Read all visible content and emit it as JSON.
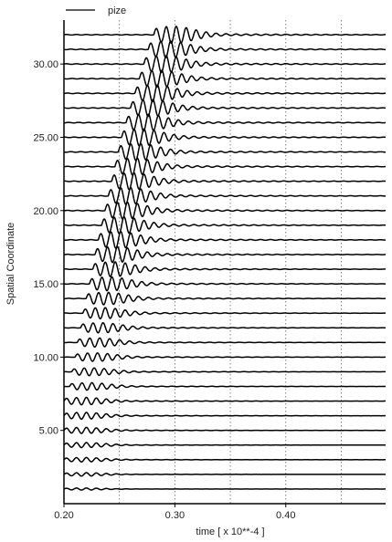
{
  "chart_data": {
    "type": "line",
    "title": "",
    "xlabel": "time [ x 10**-4 ]",
    "ylabel": "Spatial Coordinate",
    "xlim": [
      0.2,
      0.49
    ],
    "ylim": [
      0,
      33
    ],
    "x_ticks": [
      {
        "value": 0.2,
        "label": "0.20"
      },
      {
        "value": 0.3,
        "label": "0.30"
      },
      {
        "value": 0.4,
        "label": "0.40"
      }
    ],
    "y_ticks": [
      {
        "value": 5,
        "label": "5.00"
      },
      {
        "value": 10,
        "label": "10.00"
      },
      {
        "value": 15,
        "label": "15.00"
      },
      {
        "value": 20,
        "label": "20.00"
      },
      {
        "value": 25,
        "label": "25.00"
      },
      {
        "value": 30,
        "label": "30.00"
      }
    ],
    "vertical_grid": [
      0.25,
      0.3,
      0.35,
      0.4,
      0.45
    ],
    "grid_style": "dotted vertical",
    "legend": {
      "position": "top-left",
      "entries": [
        "pize"
      ]
    },
    "series": [
      {
        "name": "pize",
        "traces": {
          "offsets": [
            1,
            2,
            3,
            4,
            5,
            6,
            7,
            8,
            9,
            10,
            11,
            12,
            13,
            14,
            15,
            16,
            17,
            18,
            19,
            20,
            21,
            22,
            23,
            24,
            25,
            26,
            27,
            28,
            29,
            30,
            31,
            32
          ],
          "wavefront_arrival_time": [
            0.2,
            0.2,
            0.2,
            0.2,
            0.2,
            0.2,
            0.2,
            0.205,
            0.207,
            0.21,
            0.212,
            0.215,
            0.217,
            0.22,
            0.223,
            0.226,
            0.228,
            0.231,
            0.234,
            0.237,
            0.24,
            0.243,
            0.246,
            0.249,
            0.252,
            0.256,
            0.26,
            0.264,
            0.268,
            0.272,
            0.276,
            0.281
          ],
          "peak_amplitude": [
            0.06,
            0.1,
            0.13,
            0.15,
            0.18,
            0.2,
            0.22,
            0.22,
            0.23,
            0.25,
            0.27,
            0.3,
            0.33,
            0.37,
            0.41,
            0.44,
            0.47,
            0.5,
            0.5,
            0.5,
            0.5,
            0.5,
            0.5,
            0.5,
            0.5,
            0.5,
            0.5,
            0.5,
            0.5,
            0.5,
            0.5,
            0.5
          ],
          "oscillation_period": 0.009
        }
      }
    ]
  }
}
